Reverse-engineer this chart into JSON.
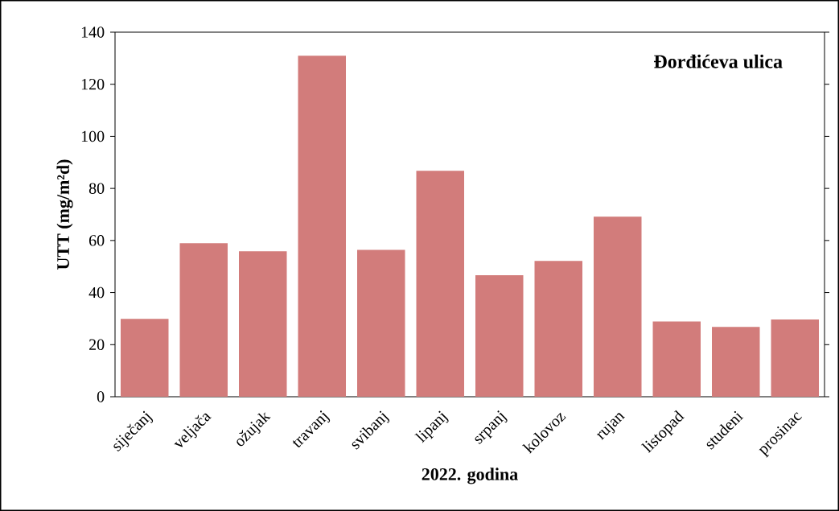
{
  "chart_data": {
    "type": "bar",
    "title": "**Đorđićeva ulica**",
    "xlabel": "**2022. godina**",
    "ylabel": "**UTT (mg/m²d)**",
    "categories": [
      "siječanj",
      "veljača",
      "ožujak",
      "travanj",
      "svibanj",
      "lipanj",
      "srpanj",
      "kolovoz",
      "rujan",
      "listopad",
      "studeni",
      "prosinac"
    ],
    "values": [
      29.7,
      58.7,
      55.6,
      130.7,
      56.2,
      86.5,
      46.4,
      51.9,
      68.9,
      28.7,
      26.6,
      29.4
    ],
    "color": "#d27c7b",
    "ylim": [
      0,
      140
    ],
    "yticks": [
      0,
      20,
      40,
      60,
      80,
      100,
      120,
      140
    ],
    "grid": false
  }
}
